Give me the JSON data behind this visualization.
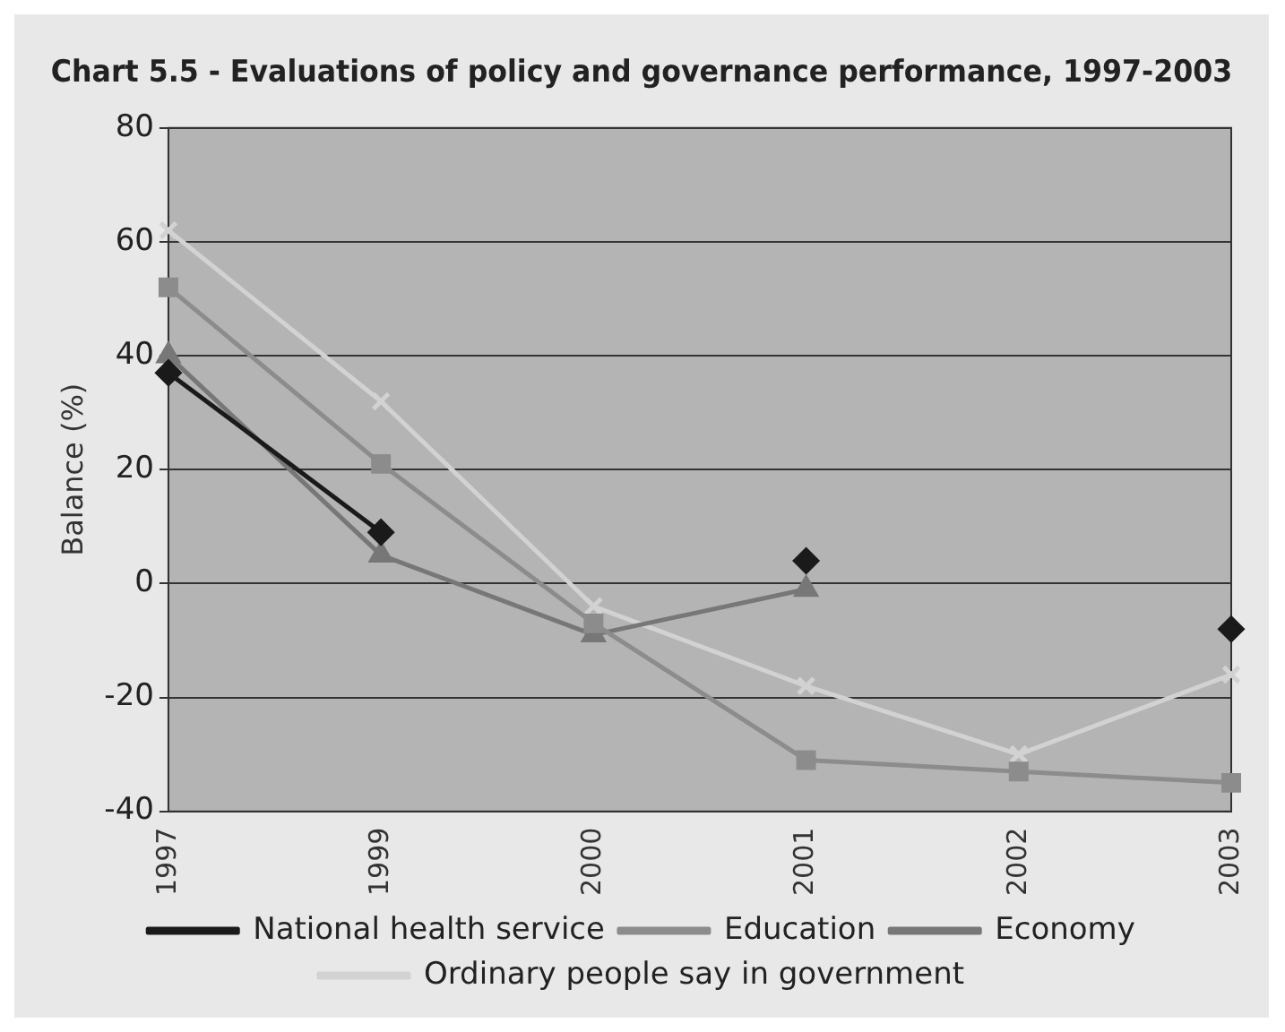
{
  "chart_data": {
    "type": "line",
    "title": "Chart 5.5 - Evaluations of policy and governance performance, 1997-2003",
    "ylabel": "Balance (%)",
    "categories": [
      "1997",
      "1999",
      "2000",
      "2001",
      "2002",
      "2003"
    ],
    "series": [
      {
        "name": "National health service",
        "color": "#1a1a1a",
        "marker": "diamond",
        "values": [
          37,
          9,
          null,
          4,
          null,
          -8
        ]
      },
      {
        "name": "Education",
        "color": "#8c8c8c",
        "marker": "square",
        "values": [
          52,
          21,
          -7,
          -31,
          -33,
          -35
        ]
      },
      {
        "name": "Economy",
        "color": "#777777",
        "marker": "triangle",
        "values": [
          40,
          5,
          -9,
          -1,
          null,
          null
        ]
      },
      {
        "name": "Ordinary people say in government",
        "color": "#d2d2d2",
        "marker": "cross",
        "values": [
          62,
          32,
          -4,
          -18,
          -30,
          -16
        ]
      }
    ],
    "ylim": [
      -40,
      80
    ],
    "yticks": [
      -40,
      -20,
      0,
      20,
      40,
      60,
      80
    ],
    "grid": "y",
    "legend": "bottom"
  }
}
